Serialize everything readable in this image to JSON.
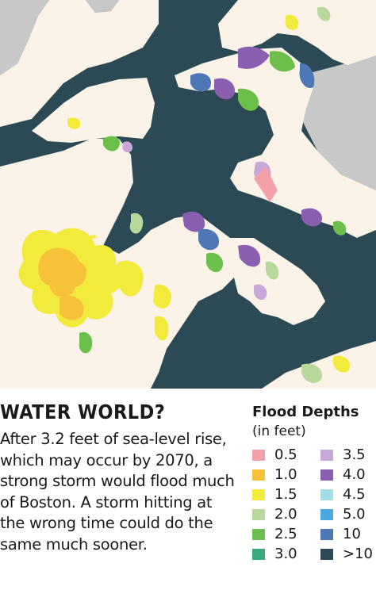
{
  "colors": {
    "water": "#2c4a55",
    "land": "#fbf3e8",
    "other_land": "#c8c8c8",
    "background": "#ffffff",
    "text": "#1a1a1a"
  },
  "caption": {
    "headline": "WATER WORLD?",
    "body": "After 3.2 feet of sea-level rise, which may occur by 2070, a strong storm would flood much of Boston. A storm hitting at the wrong time could do the same much sooner."
  },
  "legend": {
    "title": "Flood Depths",
    "subtitle": "(in feet)",
    "items": [
      {
        "label": "0.5",
        "color": "#f3a0a8"
      },
      {
        "label": "1.0",
        "color": "#f8c13a"
      },
      {
        "label": "1.5",
        "color": "#f3eb3c"
      },
      {
        "label": "2.0",
        "color": "#b9d99c"
      },
      {
        "label": "2.5",
        "color": "#6cbf4a"
      },
      {
        "label": "3.0",
        "color": "#3aaa7e"
      },
      {
        "label": "3.5",
        "color": "#c8a8d8"
      },
      {
        "label": "4.0",
        "color": "#8a5fb0"
      },
      {
        "label": "4.5",
        "color": "#a7dbe8"
      },
      {
        "label": "5.0",
        "color": "#4aa8df"
      },
      {
        "label": "10",
        "color": "#4d78b5"
      },
      {
        "label": ">10",
        "color": "#2c4a55"
      }
    ]
  }
}
